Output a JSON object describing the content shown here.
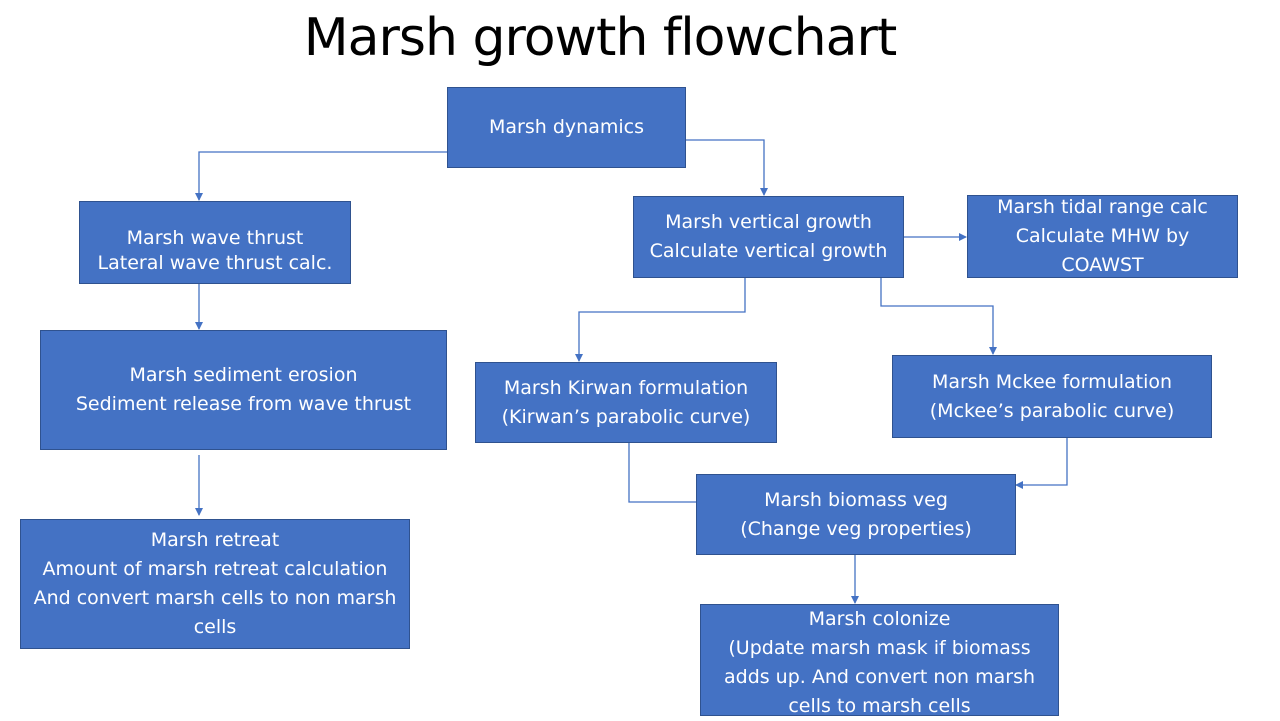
{
  "title": "Marsh growth flowchart",
  "colors": {
    "box_fill": "#4472C4",
    "box_border": "#2F528F",
    "connector": "#4472C4",
    "text": "#FFFFFF"
  },
  "nodes": {
    "dynamics": {
      "line1": "Marsh dynamics"
    },
    "wave_thrust": {
      "line1": "Marsh wave thrust",
      "line2": "Lateral wave thrust calc."
    },
    "vertical_growth": {
      "line1": "Marsh vertical growth",
      "line2": "Calculate vertical growth"
    },
    "tidal_range": {
      "line1": "Marsh tidal range calc",
      "line2": "Calculate MHW by",
      "line3": "COAWST"
    },
    "sediment_erosion": {
      "line1": "Marsh sediment erosion",
      "line2": "Sediment release from wave thrust"
    },
    "kirwan": {
      "line1": "Marsh Kirwan formulation",
      "line2": "(Kirwan’s parabolic curve)"
    },
    "mckee": {
      "line1": "Marsh Mckee formulation",
      "line2": "(Mckee’s parabolic curve)"
    },
    "retreat": {
      "line1": "Marsh retreat",
      "line2": "Amount of marsh retreat calculation",
      "line3": "And convert marsh cells to non marsh",
      "line4": "cells"
    },
    "biomass": {
      "line1": "Marsh biomass veg",
      "line2": "(Change veg properties)"
    },
    "colonize": {
      "line1": "Marsh colonize",
      "line2": "(Update marsh mask if biomass",
      "line3": "adds up. And convert non marsh",
      "line4": "cells to marsh cells"
    }
  }
}
